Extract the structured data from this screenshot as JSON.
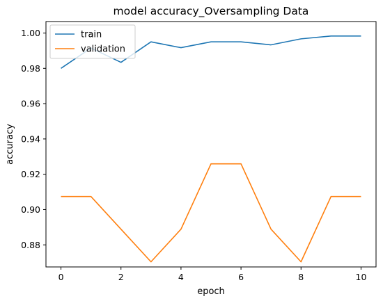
{
  "chart_data": {
    "type": "line",
    "title": "model accuracy_Oversampling Data",
    "xlabel": "epoch",
    "ylabel": "accuracy",
    "x": [
      0,
      1,
      2,
      3,
      4,
      5,
      6,
      7,
      8,
      9,
      10
    ],
    "xlim": [
      -0.5,
      10.5
    ],
    "ylim": [
      0.8675,
      1.0065
    ],
    "xticks": [
      0,
      2,
      4,
      6,
      8,
      10
    ],
    "yticks": [
      0.88,
      0.9,
      0.92,
      0.94,
      0.96,
      0.98,
      1.0
    ],
    "ytick_labels": [
      "0.88",
      "0.90",
      "0.92",
      "0.94",
      "0.96",
      "0.98",
      "1.00"
    ],
    "series": [
      {
        "name": "train",
        "color": "#1f77b4",
        "values": [
          0.98,
          0.9915,
          0.9834,
          0.995,
          0.9917,
          0.995,
          0.995,
          0.9933,
          0.9967,
          0.9983,
          0.9983
        ]
      },
      {
        "name": "validation",
        "color": "#ff7f0e",
        "values": [
          0.9074,
          0.9074,
          0.8889,
          0.8704,
          0.8889,
          0.9259,
          0.9259,
          0.8889,
          0.8704,
          0.9074,
          0.9074
        ]
      }
    ],
    "grid": false,
    "legend_position": "upper-left"
  }
}
